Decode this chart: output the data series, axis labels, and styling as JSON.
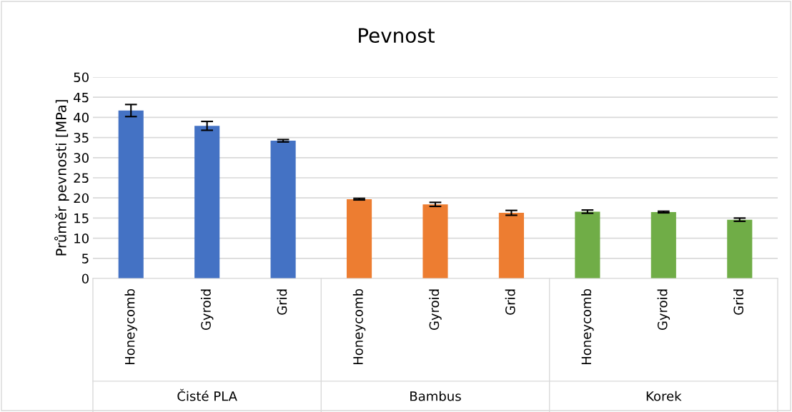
{
  "chart_data": {
    "type": "bar",
    "title": "Pevnost",
    "ylabel": "Průměr pevnosti [MPa]",
    "categories": [
      "Honeycomb",
      "Gyroid",
      "Grid",
      "Honeycomb",
      "Gyroid",
      "Grid",
      "Honeycomb",
      "Gyroid",
      "Grid"
    ],
    "values": [
      41.7,
      37.9,
      34.2,
      19.7,
      18.4,
      16.3,
      16.6,
      16.5,
      14.6
    ],
    "errors": [
      1.5,
      1.1,
      0.3,
      0.2,
      0.5,
      0.6,
      0.4,
      0.2,
      0.4
    ],
    "colors": [
      "#4472c4",
      "#4472c4",
      "#4472c4",
      "#ed7d31",
      "#ed7d31",
      "#ed7d31",
      "#70ad47",
      "#70ad47",
      "#70ad47"
    ],
    "annotations": [
      "Čisté PLA",
      "Bambus",
      "Korek"
    ],
    "ylim": [
      0,
      50
    ],
    "yticks": [
      0,
      5,
      10,
      15,
      20,
      25,
      30,
      35,
      40,
      45,
      50
    ],
    "grid": "y",
    "legend": false
  }
}
